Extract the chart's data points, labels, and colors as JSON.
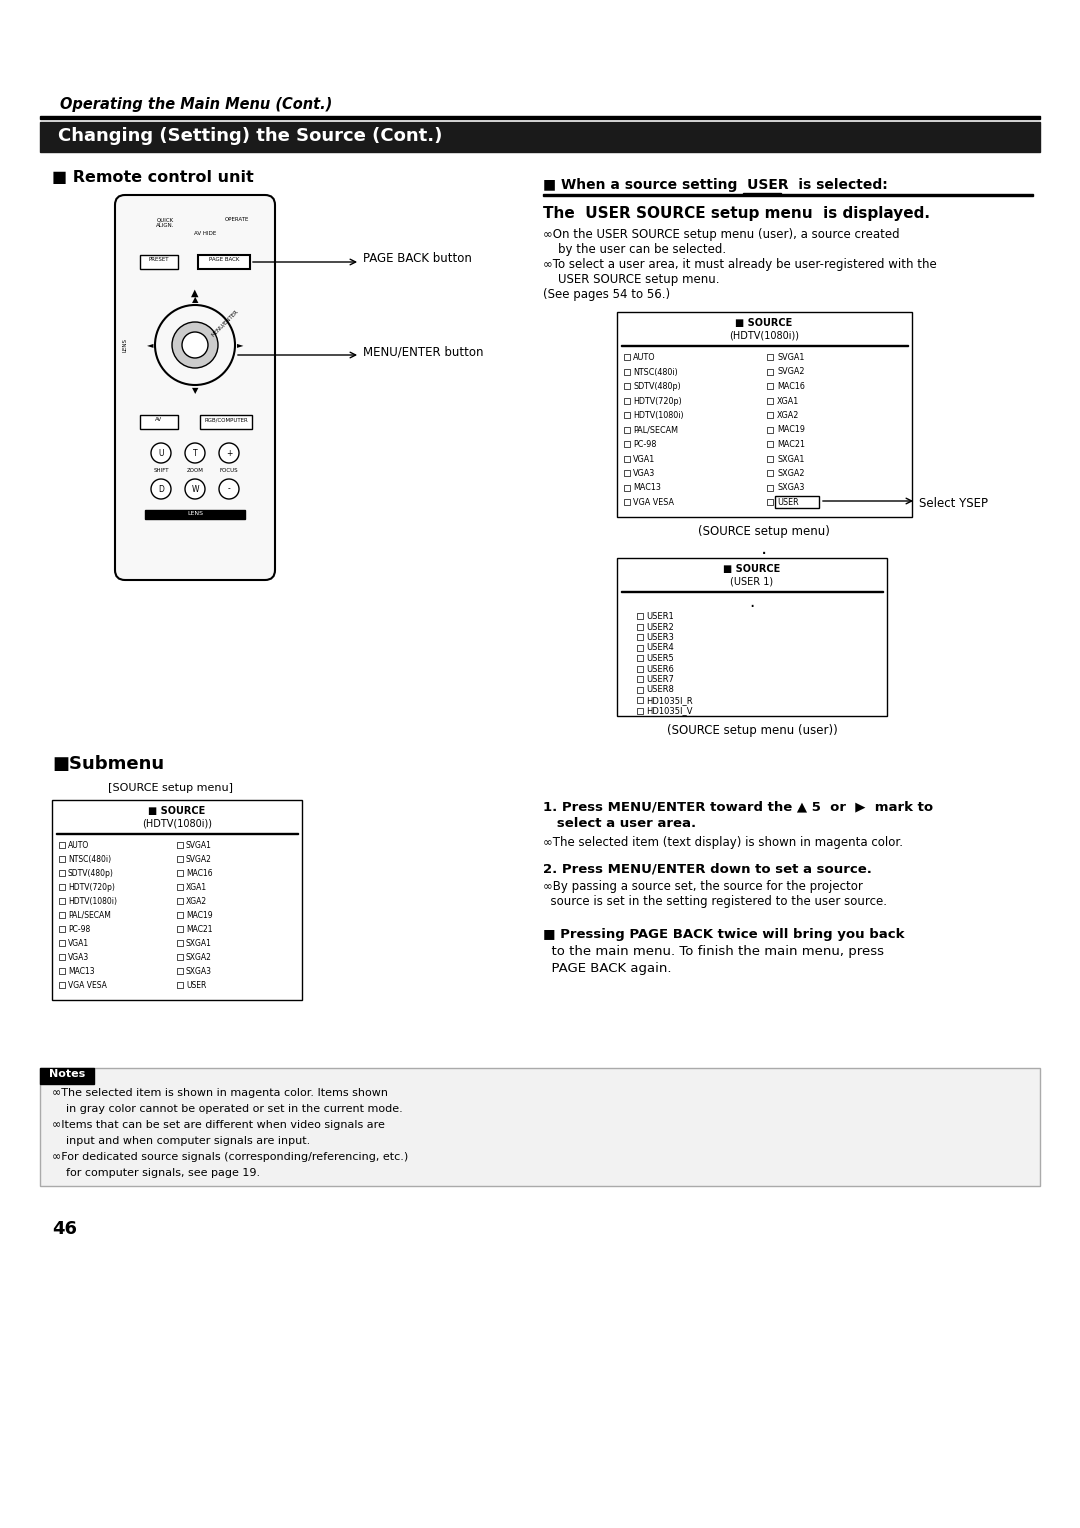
{
  "page_number": "46",
  "bg_color": "#ffffff",
  "header_italic": "Operating the Main Menu (Cont.)",
  "section_title": "Changing (Setting) the Source (Cont.)",
  "section_title_bg": "#1a1a1a",
  "left_section_title": "Remote control unit",
  "right_section_title_pre": "When a source setting  ",
  "right_section_title_user": "USER",
  "right_section_title_post": "  is selected:",
  "right_sub_title": "The  USER SOURCE setup menu  is displayed.",
  "callout_select_user": "Select YSEP",
  "submenu_title": "Submenu",
  "source_setup_label": "[SOURCE setup menu]",
  "step1": "1. Press MENU/ENTER toward the 5  or    mark to",
  "step1b": "   select a user area.",
  "step1_note": "The selected item (text display) is shown in magenta color.",
  "step2": "2. Press MENU/ENTER down to set a source.",
  "step2_note1": "By passing a source set, the source for the projector",
  "step2_note2": "  source is set in the setting registered to the user source.",
  "pageback1": "Pressing PAGE BACK twice will bring you back",
  "pageback2": "  to the main menu. To finish the main menu, press",
  "pageback3": "  PAGE BACK again.",
  "remote_callout1": "PAGE BACK button",
  "remote_callout2": "MENU/ENTER button",
  "source_menu_left": [
    "AUTO",
    "NTSC(480i)",
    "SDTV(480p)",
    "HDTV(720p)",
    "HDTV(1080i)",
    "PAL/SECAM",
    "PC-98",
    "VGA1",
    "VGA3",
    "MAC13",
    "VGA VESA"
  ],
  "source_menu_right": [
    "SVGA1",
    "SVGA2",
    "MAC16",
    "XGA1",
    "XGA2",
    "MAC19",
    "MAC21",
    "SXGA1",
    "SXGA2",
    "SXGA3",
    "USER"
  ],
  "source_menu2_items": [
    "USER1",
    "USER2",
    "USER3",
    "USER4",
    "USER5",
    "USER6",
    "USER7",
    "USER8",
    "HD1035I_R",
    "HD1035I_V"
  ],
  "caption1": "(SOURCE setup menu)",
  "caption2": "(SOURCE setup menu (user))",
  "bullets_right": [
    "On the USER SOURCE setup menu (user), a source created",
    "  by the user can be selected.",
    "To select a user area, it must already be user-registered with the",
    "  USER SOURCE setup menu.",
    "(See pages 54 to 56.)"
  ],
  "notes_bullets": [
    "The selected item is shown in magenta color. Items shown",
    "  in gray color cannot be operated or set in the current mode.",
    "Items that can be set are different when video signals are",
    "  input and when computer signals are input.",
    "For dedicated source signals (corresponding/referencing, etc.)",
    "  for computer signals, see page 19."
  ]
}
